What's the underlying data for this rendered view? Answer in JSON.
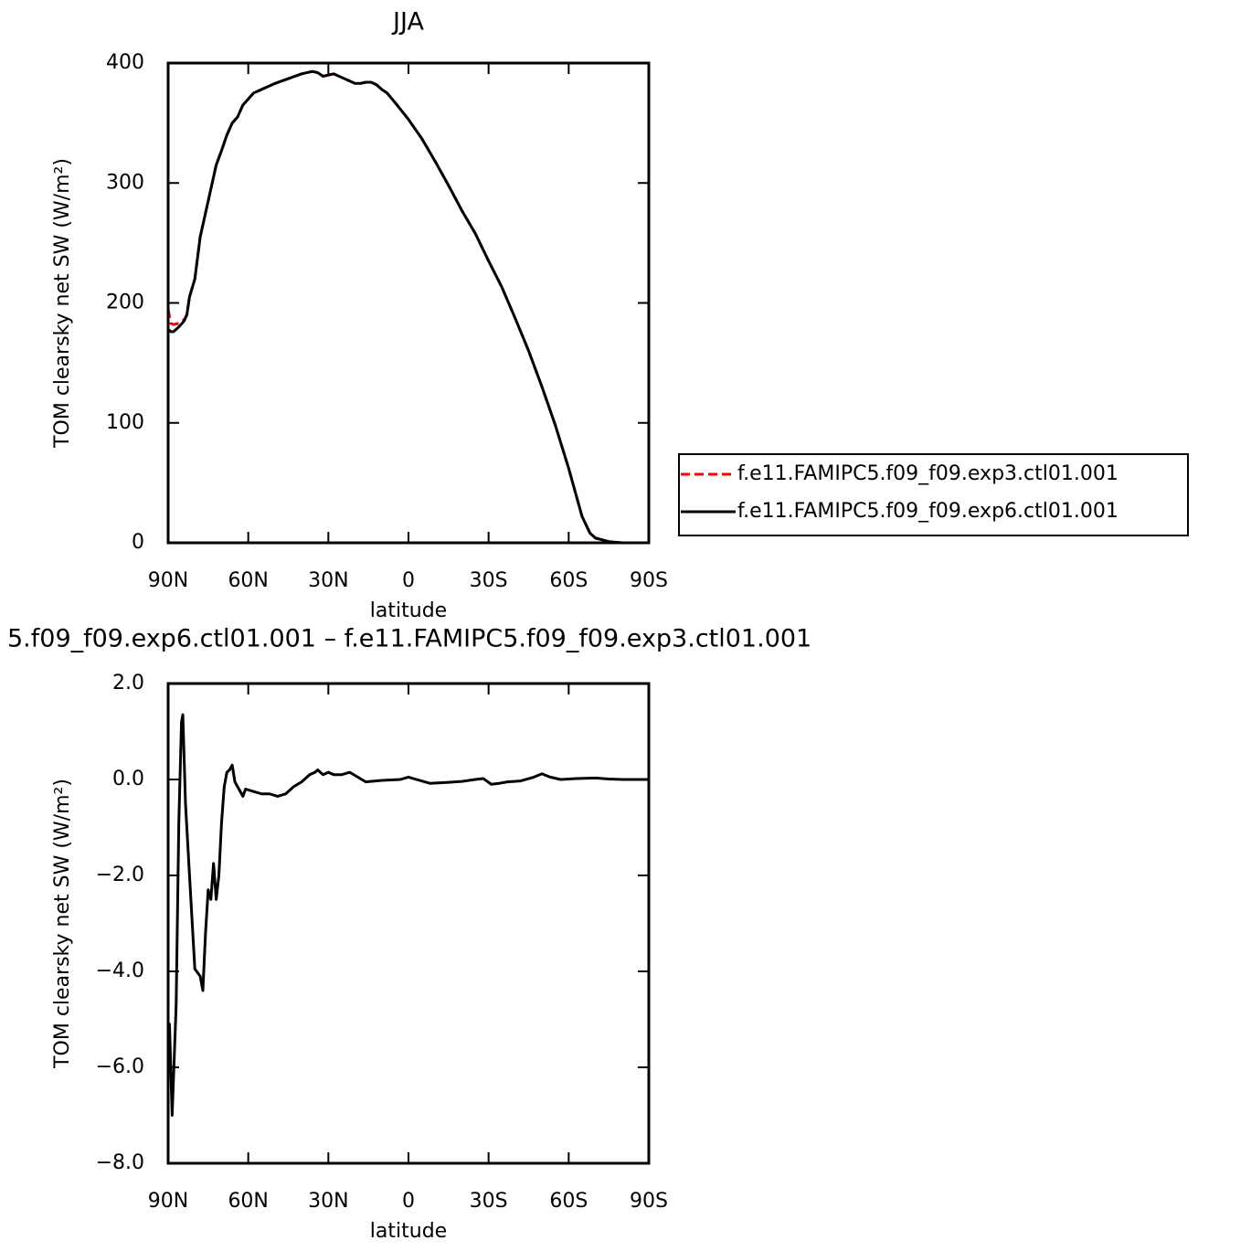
{
  "chart_data": [
    {
      "type": "line",
      "title": "JJA",
      "xlabel": "latitude",
      "ylabel": "TOM clearsky net SW (W/m²)",
      "x": [
        90,
        89,
        88,
        86,
        84,
        83,
        82,
        80,
        78,
        76,
        74,
        72,
        70,
        68,
        66,
        64,
        62,
        60,
        58,
        55,
        50,
        45,
        40,
        36,
        34,
        32,
        30,
        28,
        26,
        24,
        22,
        20,
        18,
        16,
        14,
        12,
        10,
        8,
        5,
        0,
        -5,
        -10,
        -15,
        -20,
        -25,
        -30,
        -35,
        -40,
        -45,
        -50,
        -55,
        -60,
        -63,
        -65,
        -68,
        -70,
        -75,
        -80,
        -85,
        -90
      ],
      "series": [
        {
          "name": "f.e11.FAMIPC5.f09_f09.exp3.ctl01.001",
          "color": "#ff0000",
          "line_style": "dashed",
          "values": [
            195,
            183,
            182,
            183,
            186,
            190,
            205,
            220,
            255,
            275,
            295,
            315,
            327,
            340,
            350,
            355,
            365,
            370,
            375,
            378,
            383,
            387,
            391,
            393,
            392,
            389,
            390,
            391,
            389,
            387,
            385,
            383,
            383,
            384,
            384,
            382,
            378,
            375,
            367,
            353,
            337,
            318,
            298,
            277,
            258,
            235,
            213,
            187,
            160,
            130,
            98,
            62,
            38,
            22,
            8,
            4,
            1,
            0,
            0,
            0
          ]
        },
        {
          "name": "f.e11.FAMIPC5.f09_f09.exp6.ctl01.001",
          "color": "#000000",
          "line_style": "solid",
          "values": [
            178,
            176,
            176,
            180,
            185,
            190,
            205,
            220,
            255,
            275,
            295,
            315,
            327,
            340,
            350,
            355,
            365,
            370,
            375,
            378,
            383,
            387,
            391,
            393,
            392,
            389,
            390,
            391,
            389,
            387,
            385,
            383,
            383,
            384,
            384,
            382,
            378,
            375,
            367,
            353,
            337,
            318,
            298,
            277,
            258,
            235,
            213,
            187,
            160,
            130,
            98,
            62,
            38,
            22,
            8,
            4,
            1,
            0,
            0,
            0
          ]
        }
      ],
      "xlim": [
        90,
        -90
      ],
      "xticks": [
        {
          "value": 90,
          "label": "90N"
        },
        {
          "value": 60,
          "label": "60N"
        },
        {
          "value": 30,
          "label": "30N"
        },
        0,
        {
          "value": -30,
          "label": "30S"
        },
        {
          "value": -60,
          "label": "60S"
        },
        {
          "value": -90,
          "label": "90S"
        }
      ],
      "ylim": [
        0,
        400
      ],
      "yticks": [
        0,
        100,
        200,
        300,
        400
      ],
      "legend": "right"
    },
    {
      "type": "line",
      "title": "5.f09_f09.exp6.ctl01.001 – f.e11.FAMIPC5.f09_f09.exp3.ctl01.001",
      "xlabel": "latitude",
      "ylabel": "TOM clearsky net SW (W/m²)",
      "x": [
        90,
        89.5,
        88.5,
        87,
        86,
        85,
        84.5,
        83.5,
        82,
        80,
        78,
        77,
        76,
        75,
        74,
        73,
        72,
        71,
        70,
        69,
        68,
        67,
        66,
        65,
        64,
        62,
        61,
        58,
        55,
        52,
        49,
        46,
        43,
        40,
        37,
        35,
        34,
        32,
        30,
        28,
        25,
        22,
        19,
        16,
        10,
        3,
        0,
        -3,
        -8,
        -15,
        -20,
        -25,
        -28,
        -31,
        -34,
        -37,
        -42,
        -47,
        -50,
        -53,
        -57,
        -63,
        -70,
        -75,
        -80,
        -90
      ],
      "values": [
        -5.9,
        -5.1,
        -7.0,
        -4.7,
        -0.9,
        1.2,
        1.35,
        -0.5,
        -2.0,
        -3.95,
        -4.1,
        -4.4,
        -3.2,
        -2.3,
        -2.5,
        -1.75,
        -2.5,
        -2.0,
        -0.9,
        -0.15,
        0.15,
        0.2,
        0.3,
        -0.05,
        -0.15,
        -0.35,
        -0.2,
        -0.25,
        -0.3,
        -0.3,
        -0.35,
        -0.3,
        -0.15,
        -0.05,
        0.1,
        0.15,
        0.2,
        0.1,
        0.15,
        0.1,
        0.1,
        0.15,
        0.05,
        -0.05,
        -0.02,
        0,
        0.05,
        0,
        -0.08,
        -0.06,
        -0.04,
        0,
        0.02,
        -0.1,
        -0.08,
        -0.05,
        -0.03,
        0.05,
        0.12,
        0.05,
        0,
        0.02,
        0.03,
        0.01,
        0,
        0
      ],
      "color": "#000000",
      "xlim": [
        90,
        -90
      ],
      "xticks": [
        {
          "value": 90,
          "label": "90N"
        },
        {
          "value": 60,
          "label": "60N"
        },
        {
          "value": 30,
          "label": "30N"
        },
        0,
        {
          "value": -30,
          "label": "30S"
        },
        {
          "value": -60,
          "label": "60S"
        },
        {
          "value": -90,
          "label": "90S"
        }
      ],
      "ylim": [
        -8,
        2
      ],
      "yticks": [
        {
          "value": -8,
          "label": "−8.0"
        },
        {
          "value": -6,
          "label": "−6.0"
        },
        {
          "value": -4,
          "label": "−4.0"
        },
        {
          "value": -2,
          "label": "−2.0"
        },
        {
          "value": 0,
          "label": "0.0"
        },
        {
          "value": 2,
          "label": "2.0"
        }
      ]
    }
  ]
}
